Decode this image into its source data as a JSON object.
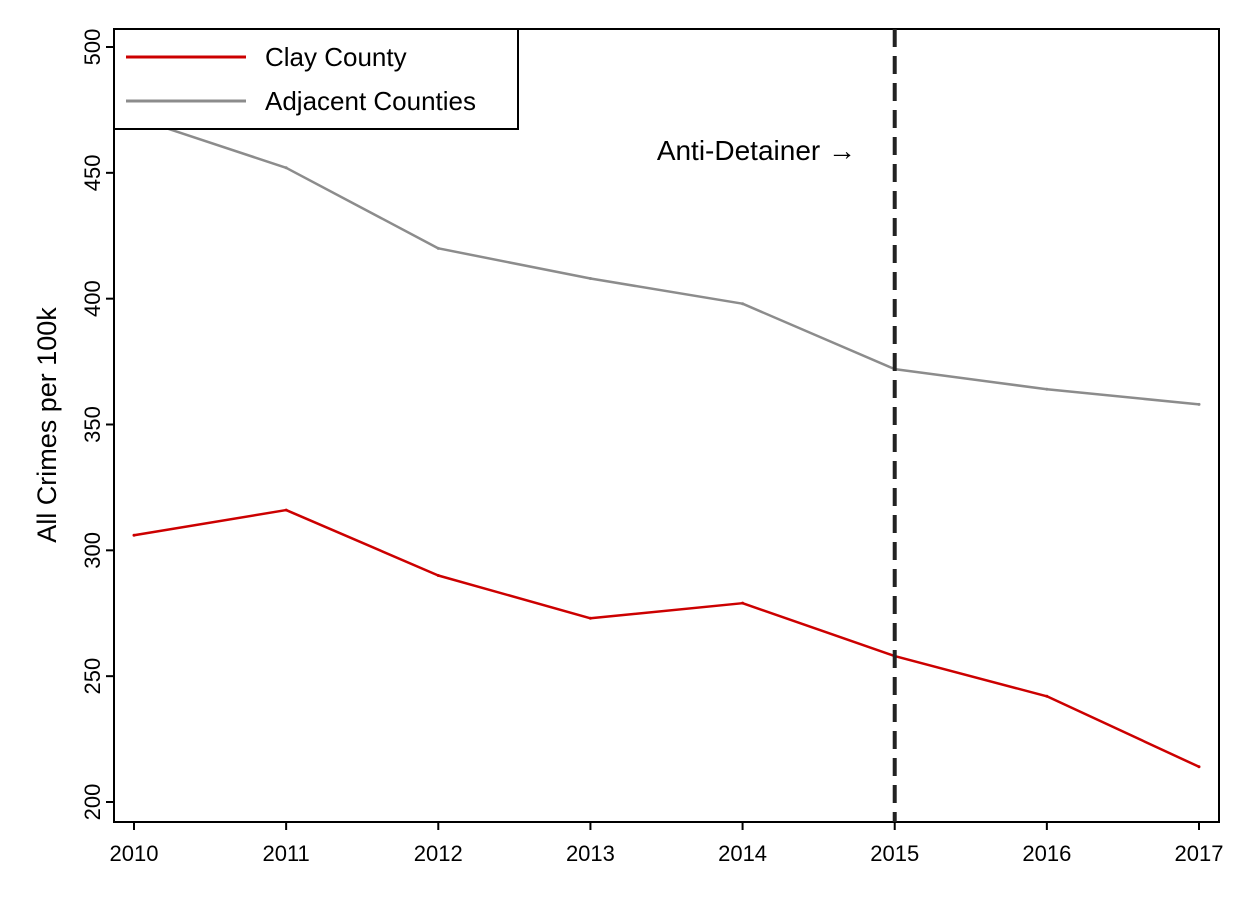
{
  "chart_data": {
    "type": "line",
    "title": "",
    "xlabel": "",
    "ylabel": "All Crimes per 100k",
    "x": [
      2010,
      2011,
      2012,
      2013,
      2014,
      2015,
      2016,
      2017
    ],
    "x_tick_labels": [
      "2010",
      "2011",
      "2012",
      "2013",
      "2014",
      "2015",
      "2016",
      "2017"
    ],
    "xlim": [
      2010,
      2017
    ],
    "ylim": [
      200,
      500
    ],
    "y_ticks": [
      200,
      250,
      300,
      350,
      400,
      450,
      500
    ],
    "y_tick_labels": [
      "200",
      "250",
      "300",
      "350",
      "400",
      "450",
      "500"
    ],
    "grid": false,
    "legend_position": "top-left",
    "series": [
      {
        "name": "Clay County",
        "color": "#cc0000",
        "values": [
          306,
          316,
          290,
          273,
          279,
          258,
          242,
          214
        ]
      },
      {
        "name": "Adjacent Counties",
        "color": "#8c8c8c",
        "values": [
          472,
          452,
          420,
          408,
          398,
          372,
          364,
          358
        ]
      }
    ],
    "vline": {
      "x": 2015,
      "style": "dashed",
      "color": "#222222"
    },
    "annotation": {
      "text": "Anti-Detainer →"
    }
  }
}
